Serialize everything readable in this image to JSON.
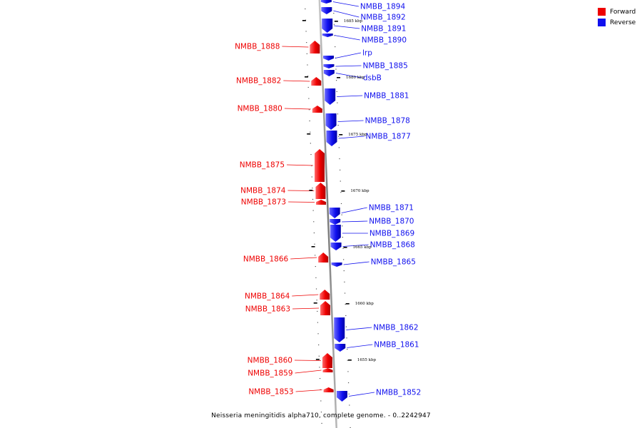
{
  "caption": "Neisseria meningitidis alpha710, complete genome. - 0..2242947",
  "colors": {
    "forward": "#ee0000",
    "reverse": "#1010ee",
    "backbone": "#8a8a8a"
  },
  "legend": [
    {
      "label": "Forward",
      "strand": "forward"
    },
    {
      "label": "Reverse",
      "strand": "reverse"
    }
  ],
  "kbp_ticks": [
    "1685 kbp",
    "1680 kbp",
    "1675 kbp",
    "1670 kbp",
    "1665 kbp",
    "1660 kbp",
    "1655 kbp"
  ],
  "genes_forward": [
    "NMBB_1888",
    "NMBB_1882",
    "NMBB_1880",
    "NMBB_1875",
    "NMBB_1874",
    "NMBB_1873",
    "NMBB_1866",
    "NMBB_1864",
    "NMBB_1863",
    "NMBB_1860",
    "NMBB_1859",
    "NMBB_1853"
  ],
  "genes_reverse": [
    "NMBB_1894",
    "NMBB_1892",
    "NMBB_1891",
    "NMBB_1890",
    "lrp",
    "NMBB_1885",
    "dsbB",
    "NMBB_1881",
    "NMBB_1878",
    "NMBB_1877",
    "NMBB_1871",
    "NMBB_1870",
    "NMBB_1869",
    "NMBB_1868",
    "NMBB_1865",
    "NMBB_1862",
    "NMBB_1861",
    "NMBB_1852"
  ]
}
